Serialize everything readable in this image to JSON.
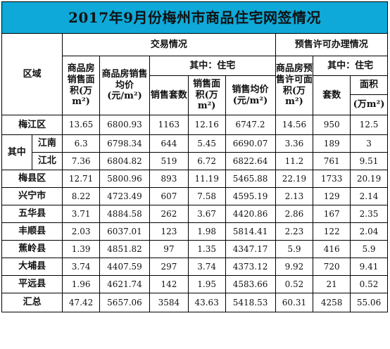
{
  "title": "2017年9月份梅州市商品住宅网签情况",
  "headers": {
    "region": "区域",
    "trade": "交易情况",
    "presale": "预售许可办理情况",
    "area": "商品房销售面积(万m²)",
    "price": "商品房销售均价(元/m²)",
    "trade_sub": "其中：住宅",
    "count": "销售套数",
    "res_area": "销售面积(万m²)",
    "res_price": "销售均价(元/m²)",
    "presale_area": "商品房预售许可面积(万m²)",
    "presale_sub": "其中：住宅",
    "units": "套数",
    "area2": "面积",
    "area2_unit": "(万m²)"
  },
  "group_label": "其中",
  "rows": [
    {
      "name": "梅江区",
      "area": "13.65",
      "price": "6800.93",
      "count": "1163",
      "res_area": "12.16",
      "res_price": "6747.2",
      "presale_area": "14.56",
      "units": "950",
      "area2": "12.5"
    },
    {
      "name": "江南",
      "area": "6.3",
      "price": "6798.34",
      "count": "644",
      "res_area": "5.45",
      "res_price": "6690.07",
      "presale_area": "3.36",
      "units": "189",
      "area2": "3"
    },
    {
      "name": "江北",
      "area": "7.36",
      "price": "6804.82",
      "count": "519",
      "res_area": "6.72",
      "res_price": "6822.64",
      "presale_area": "11.2",
      "units": "761",
      "area2": "9.51"
    },
    {
      "name": "梅县区",
      "area": "12.71",
      "price": "5800.96",
      "count": "893",
      "res_area": "11.19",
      "res_price": "5465.88",
      "presale_area": "22.19",
      "units": "1733",
      "area2": "20.19"
    },
    {
      "name": "兴宁市",
      "area": "8.22",
      "price": "4723.49",
      "count": "607",
      "res_area": "7.58",
      "res_price": "4595.19",
      "presale_area": "2.13",
      "units": "129",
      "area2": "2.14"
    },
    {
      "name": "五华县",
      "area": "3.71",
      "price": "4884.58",
      "count": "262",
      "res_area": "3.67",
      "res_price": "4420.86",
      "presale_area": "2.86",
      "units": "167",
      "area2": "2.35"
    },
    {
      "name": "丰顺县",
      "area": "2.03",
      "price": "6037.01",
      "count": "123",
      "res_area": "1.98",
      "res_price": "5814.41",
      "presale_area": "2.23",
      "units": "122",
      "area2": "2.04"
    },
    {
      "name": "蕉岭县",
      "area": "1.39",
      "price": "4851.82",
      "count": "97",
      "res_area": "1.35",
      "res_price": "4347.17",
      "presale_area": "5.9",
      "units": "416",
      "area2": "5.9"
    },
    {
      "name": "大埔县",
      "area": "3.74",
      "price": "4407.59",
      "count": "297",
      "res_area": "3.74",
      "res_price": "4373.12",
      "presale_area": "9.92",
      "units": "720",
      "area2": "9.41"
    },
    {
      "name": "平远县",
      "area": "1.96",
      "price": "4621.74",
      "count": "142",
      "res_area": "1.95",
      "res_price": "4583.66",
      "presale_area": "0.52",
      "units": "21",
      "area2": "0.52"
    },
    {
      "name": "汇总",
      "area": "47.42",
      "price": "5657.06",
      "count": "3584",
      "res_area": "43.63",
      "res_price": "5418.53",
      "presale_area": "60.31",
      "units": "4258",
      "area2": "55.06"
    }
  ]
}
